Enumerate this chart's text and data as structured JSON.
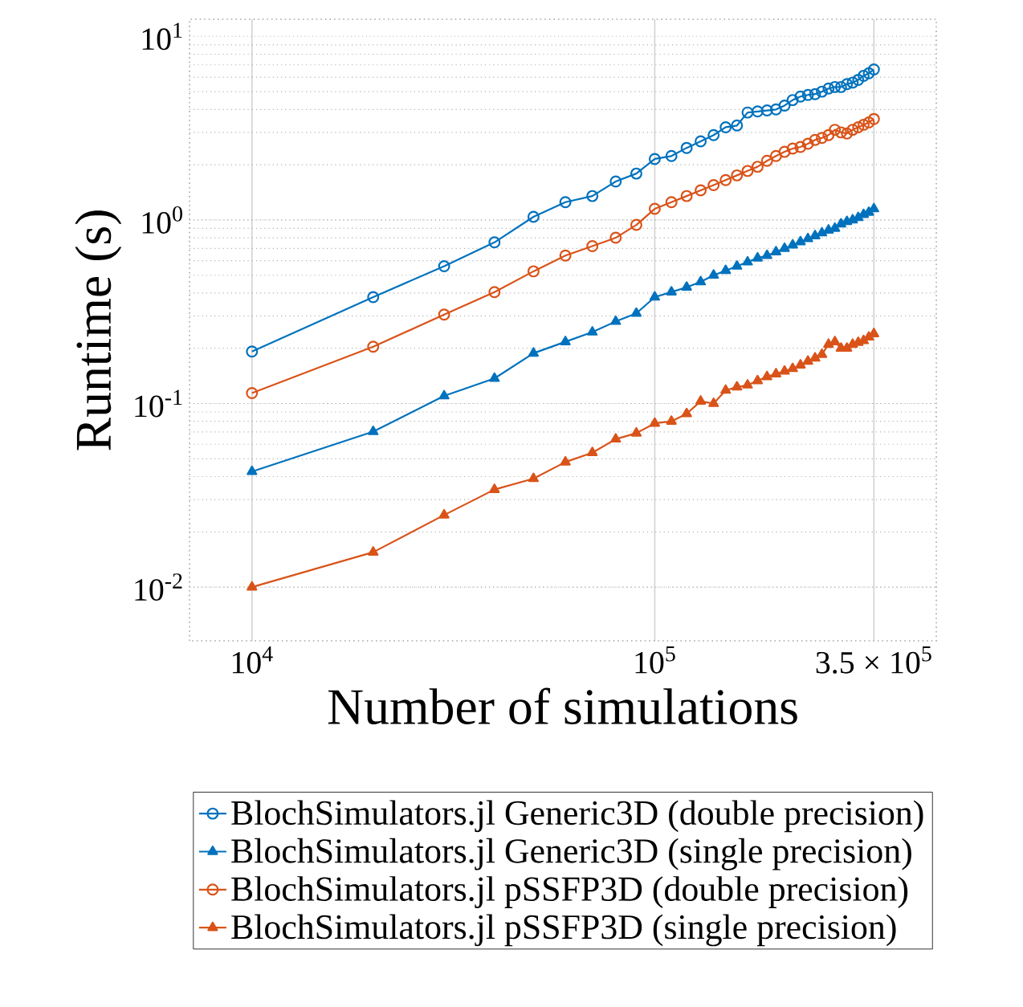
{
  "chart_data": {
    "type": "line",
    "xlabel": "Number of simulations",
    "ylabel": "Runtime (s)",
    "log": "xy",
    "grid": true,
    "legend": "bottom",
    "line_style": "solid",
    "xlim": [
      7000,
      500000
    ],
    "ylim": [
      0.0051,
      12.4
    ],
    "xticks": [
      {
        "value": 10000,
        "label": "10$^{4}$"
      },
      {
        "value": 100000,
        "label": "10$^{5}$"
      },
      {
        "value": 350000,
        "label": "3.5 × 10$^{5}$"
      }
    ],
    "yticks": [
      {
        "value": 0.01,
        "label": "10$^{-2}$"
      },
      {
        "value": 0.1,
        "label": "10$^{-1}$"
      },
      {
        "value": 1,
        "label": "10$^{0}$"
      },
      {
        "value": 10,
        "label": "10$^{1}$"
      }
    ],
    "x": [
      10000,
      20000,
      30000,
      40000,
      50000,
      60000,
      70000,
      80000,
      90000,
      100000,
      110000,
      120000,
      130000,
      140000,
      150000,
      160000,
      170000,
      180000,
      190000,
      200000,
      210000,
      220000,
      230000,
      240000,
      250000,
      260000,
      270000,
      280000,
      290000,
      300000,
      310000,
      320000,
      330000,
      340000,
      350000
    ],
    "series": [
      {
        "name": "BlochSimulators.jl Generic3D (double precision)",
        "color": "#0072bd",
        "marker": "circle",
        "values": [
          0.192,
          0.38,
          0.56,
          0.755,
          1.04,
          1.25,
          1.35,
          1.62,
          1.79,
          2.15,
          2.23,
          2.47,
          2.68,
          2.9,
          3.2,
          3.27,
          3.85,
          3.9,
          3.95,
          4.0,
          4.2,
          4.5,
          4.7,
          4.8,
          4.85,
          5.0,
          5.2,
          5.3,
          5.3,
          5.5,
          5.6,
          5.8,
          6.1,
          6.3,
          6.6
        ]
      },
      {
        "name": "BlochSimulators.jl Generic3D (single precision)",
        "color": "#0072bd",
        "marker": "triangle",
        "values": [
          0.0426,
          0.0703,
          0.11,
          0.137,
          0.188,
          0.217,
          0.245,
          0.28,
          0.31,
          0.38,
          0.405,
          0.43,
          0.46,
          0.5,
          0.53,
          0.56,
          0.59,
          0.62,
          0.64,
          0.67,
          0.7,
          0.73,
          0.76,
          0.79,
          0.82,
          0.85,
          0.88,
          0.9,
          0.95,
          0.98,
          1.0,
          1.03,
          1.07,
          1.1,
          1.15
        ]
      },
      {
        "name": "BlochSimulators.jl pSSFP3D (double precision)",
        "color": "#d95319",
        "marker": "circle",
        "values": [
          0.114,
          0.204,
          0.305,
          0.405,
          0.525,
          0.64,
          0.72,
          0.8,
          0.94,
          1.15,
          1.25,
          1.35,
          1.45,
          1.55,
          1.65,
          1.75,
          1.85,
          1.95,
          2.1,
          2.23,
          2.35,
          2.45,
          2.5,
          2.6,
          2.73,
          2.8,
          2.9,
          3.1,
          3.0,
          2.96,
          3.1,
          3.2,
          3.3,
          3.4,
          3.55
        ]
      },
      {
        "name": "BlochSimulators.jl pSSFP3D (single precision)",
        "color": "#d95319",
        "marker": "triangle",
        "values": [
          0.01,
          0.0155,
          0.0247,
          0.034,
          0.039,
          0.048,
          0.054,
          0.064,
          0.069,
          0.078,
          0.08,
          0.088,
          0.103,
          0.1,
          0.118,
          0.123,
          0.126,
          0.133,
          0.14,
          0.145,
          0.15,
          0.155,
          0.162,
          0.17,
          0.177,
          0.185,
          0.21,
          0.217,
          0.2,
          0.2,
          0.21,
          0.215,
          0.22,
          0.23,
          0.24
        ]
      }
    ]
  }
}
